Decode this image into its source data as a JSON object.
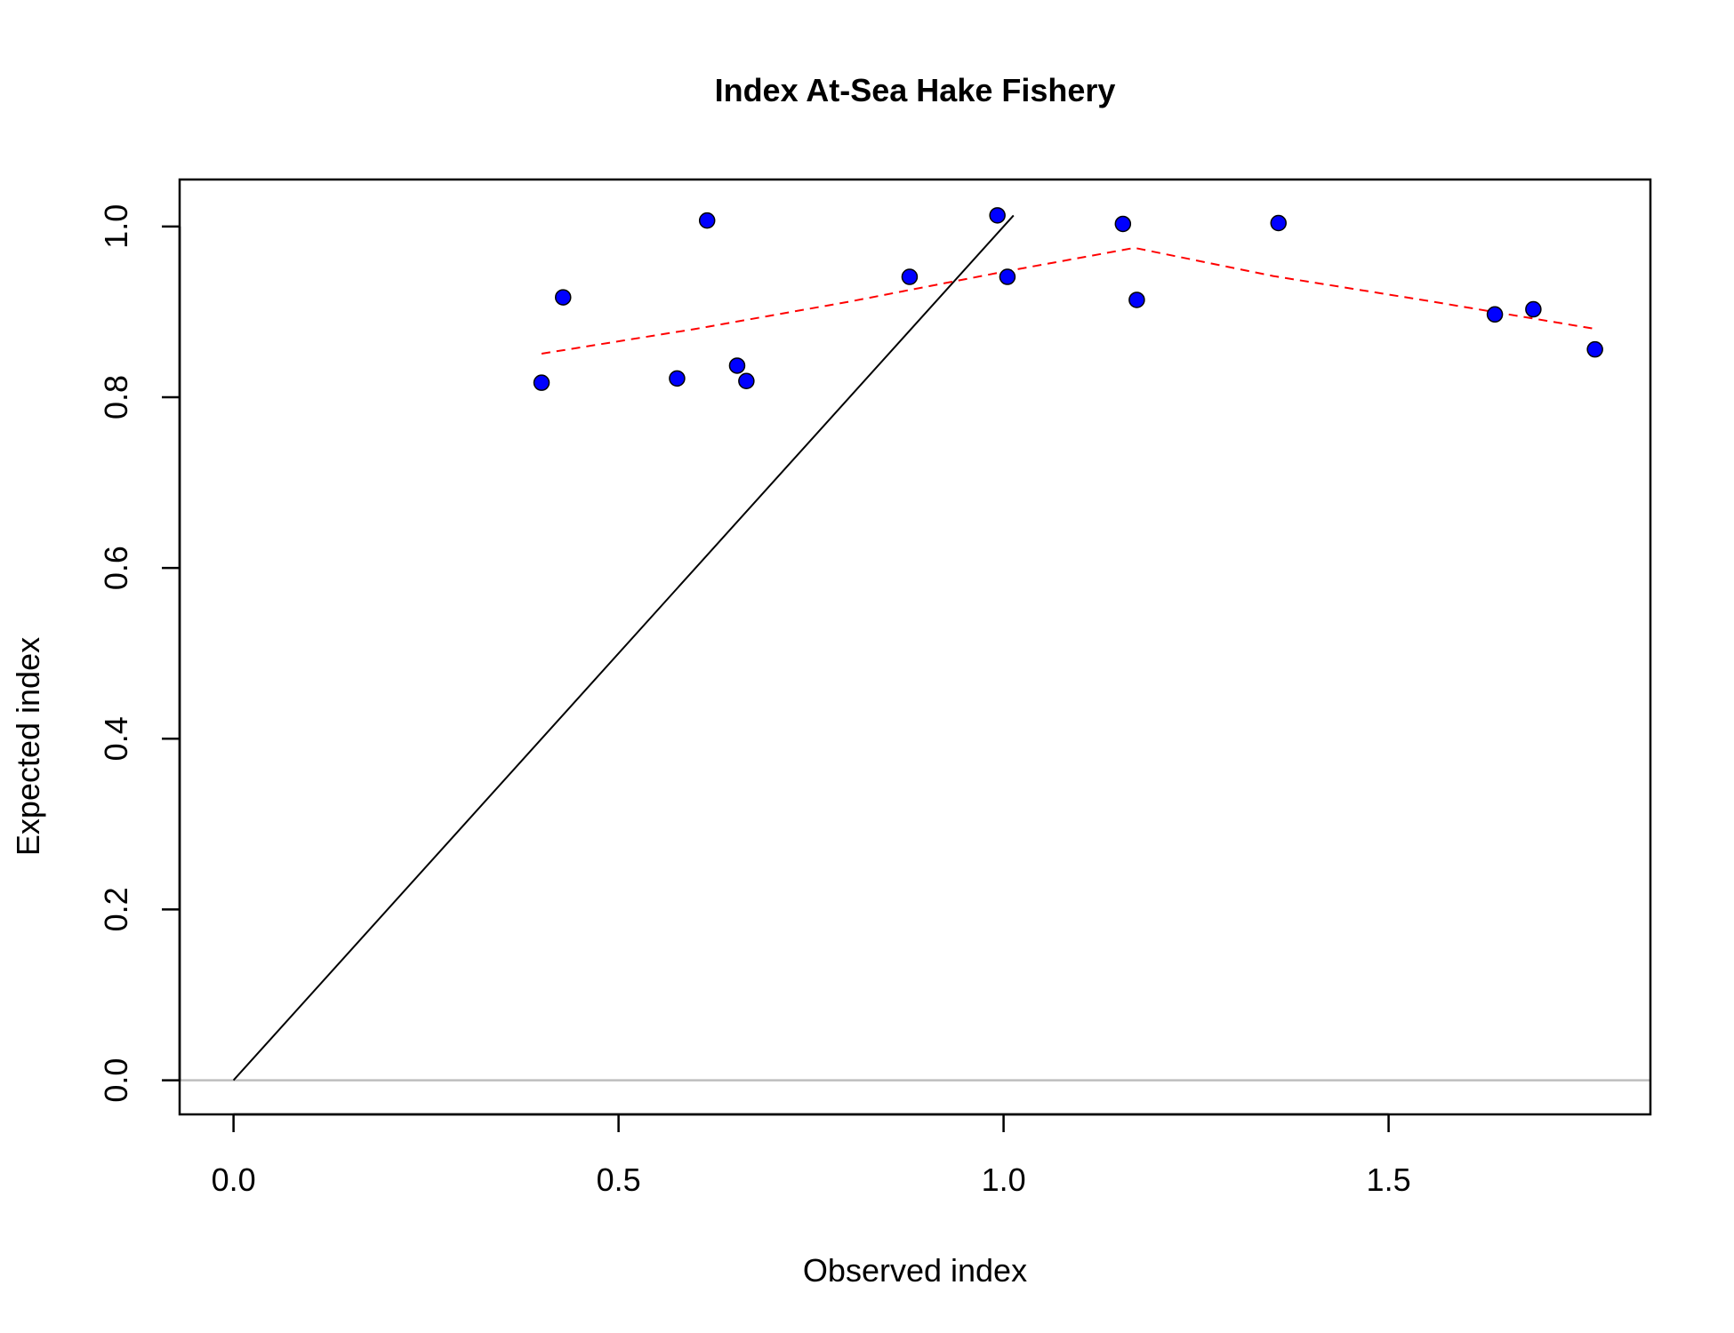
{
  "chart_data": {
    "type": "scatter",
    "title": "Index At-Sea Hake Fishery",
    "xlabel": "Observed index",
    "ylabel": "Expected index",
    "xlim": [
      -0.07,
      1.84
    ],
    "ylim": [
      -0.04,
      1.055
    ],
    "x_ticks": [
      "0.0",
      "0.5",
      "1.0",
      "1.5"
    ],
    "y_ticks": [
      "0.0",
      "0.2",
      "0.4",
      "0.6",
      "0.8",
      "1.0"
    ],
    "grid": false,
    "colors": {
      "points": "#0000ff",
      "point_outline": "#000000",
      "one_to_one_line": "#000000",
      "smoother": "#ff0000",
      "zero_line": "#bebebe"
    },
    "series": [
      {
        "type": "scatter",
        "points": [
          {
            "x": 0.4,
            "y": 0.817
          },
          {
            "x": 0.428,
            "y": 0.917
          },
          {
            "x": 0.576,
            "y": 0.822
          },
          {
            "x": 0.615,
            "y": 1.007
          },
          {
            "x": 0.654,
            "y": 0.837
          },
          {
            "x": 0.666,
            "y": 0.819
          },
          {
            "x": 0.878,
            "y": 0.941
          },
          {
            "x": 0.992,
            "y": 1.013
          },
          {
            "x": 1.005,
            "y": 0.941
          },
          {
            "x": 1.155,
            "y": 1.003
          },
          {
            "x": 1.173,
            "y": 0.914
          },
          {
            "x": 1.357,
            "y": 1.004
          },
          {
            "x": 1.638,
            "y": 0.897
          },
          {
            "x": 1.688,
            "y": 0.903
          },
          {
            "x": 1.768,
            "y": 0.856
          }
        ]
      },
      {
        "type": "line",
        "style": "solid",
        "points": [
          {
            "x": 0.0,
            "y": 0.0
          },
          {
            "x": 1.013,
            "y": 1.013
          }
        ]
      },
      {
        "type": "line",
        "style": "dashed",
        "points": [
          {
            "x": 0.4,
            "y": 0.851
          },
          {
            "x": 0.6,
            "y": 0.88
          },
          {
            "x": 0.8,
            "y": 0.912
          },
          {
            "x": 1.0,
            "y": 0.947
          },
          {
            "x": 1.17,
            "y": 0.975
          },
          {
            "x": 1.35,
            "y": 0.942
          },
          {
            "x": 1.55,
            "y": 0.913
          },
          {
            "x": 1.768,
            "y": 0.88
          }
        ]
      },
      {
        "type": "hline",
        "y": 0.0
      }
    ]
  }
}
